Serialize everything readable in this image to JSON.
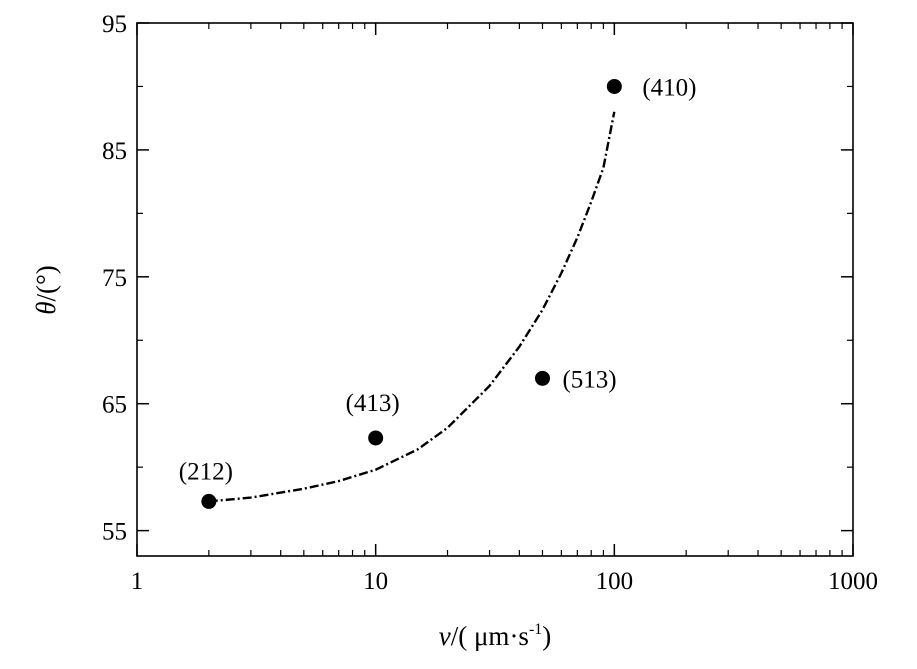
{
  "chart_data": {
    "type": "scatter",
    "xscale": "log",
    "xlim": [
      1,
      1000
    ],
    "ylim": [
      53,
      95
    ],
    "x_ticks": [
      1,
      10,
      100,
      1000
    ],
    "x_tick_labels": [
      "1",
      "10",
      "100",
      "1000"
    ],
    "y_ticks": [
      55,
      65,
      75,
      85,
      95
    ],
    "y_tick_labels": [
      "55",
      "65",
      "75",
      "85",
      "95"
    ],
    "xlabel": {
      "var": "v",
      "rest": "/( μm·s",
      "sup": "-1",
      "close": ")"
    },
    "ylabel": {
      "var": "θ",
      "rest": "/(°)"
    },
    "grid": false,
    "legend": "none",
    "points": [
      {
        "label": "(212)",
        "x": 2,
        "y": 57.3
      },
      {
        "label": "(413)",
        "x": 10,
        "y": 62.3
      },
      {
        "label": "(513)",
        "x": 50,
        "y": 67
      },
      {
        "label": "(410)",
        "x": 100,
        "y": 90
      }
    ],
    "fit_curve": {
      "style": "dash-dot",
      "points": [
        [
          2,
          57.3
        ],
        [
          3,
          57.6
        ],
        [
          5,
          58.3
        ],
        [
          7,
          58.9
        ],
        [
          10,
          59.8
        ],
        [
          15,
          61.4
        ],
        [
          20,
          63.1
        ],
        [
          30,
          66.4
        ],
        [
          40,
          69.5
        ],
        [
          50,
          72.4
        ],
        [
          60,
          75.3
        ],
        [
          70,
          78.1
        ],
        [
          80,
          80.9
        ],
        [
          90,
          83.6
        ],
        [
          100,
          88
        ]
      ]
    },
    "colors": {
      "marker": "#000000",
      "line": "#000000",
      "axis": "#000000"
    }
  }
}
